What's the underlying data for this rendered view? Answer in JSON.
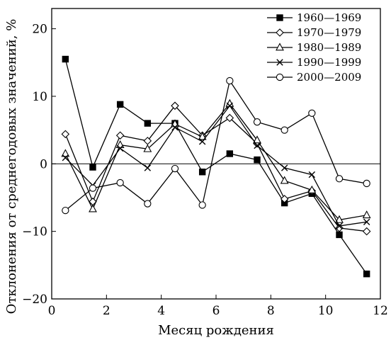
{
  "chart_data": {
    "type": "line",
    "xlabel": "Месяц рождения",
    "ylabel": "Отклонения от среднегодовых значений, %",
    "xlim": [
      0,
      12
    ],
    "ylim": [
      -20,
      23
    ],
    "xticks": [
      0,
      2,
      4,
      6,
      8,
      10,
      12
    ],
    "yticks": [
      -20,
      -10,
      0,
      10,
      20
    ],
    "zero_line": true,
    "grid": false,
    "legend_position": "top-right",
    "x": [
      0.5,
      1.5,
      2.5,
      3.5,
      4.5,
      5.5,
      6.5,
      7.5,
      8.5,
      9.5,
      10.5,
      11.5
    ],
    "series": [
      {
        "name": "1960—1969",
        "marker": "square-filled",
        "values": [
          15.5,
          -0.5,
          8.8,
          6.0,
          6.0,
          -1.2,
          1.5,
          0.6,
          -5.8,
          -4.4,
          -10.5,
          -16.3
        ]
      },
      {
        "name": "1970—1979",
        "marker": "diamond-open",
        "values": [
          4.4,
          -5.6,
          4.2,
          3.4,
          8.6,
          4.2,
          6.8,
          3.0,
          -5.2,
          -4.0,
          -9.5,
          -10.0
        ]
      },
      {
        "name": "1980—1989",
        "marker": "triangle-open",
        "values": [
          1.5,
          -6.7,
          2.8,
          2.2,
          5.9,
          4.0,
          8.9,
          3.5,
          -2.5,
          -3.9,
          -8.3,
          -7.6
        ]
      },
      {
        "name": "1990—1999",
        "marker": "x",
        "values": [
          0.9,
          -3.2,
          2.3,
          -0.6,
          5.4,
          3.3,
          8.6,
          2.7,
          -0.6,
          -1.6,
          -9.2,
          -8.6
        ]
      },
      {
        "name": "2000—2009",
        "marker": "circle-open",
        "values": [
          -6.9,
          -3.6,
          -2.8,
          -5.9,
          -0.7,
          -6.1,
          12.3,
          6.2,
          5.0,
          7.5,
          -2.2,
          -2.9
        ]
      }
    ]
  }
}
